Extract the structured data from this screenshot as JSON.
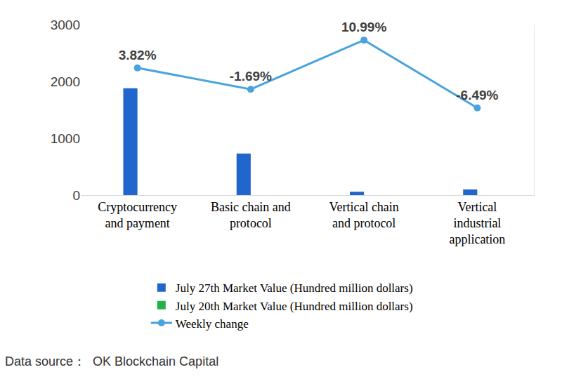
{
  "chart_data": {
    "type": "bar",
    "categories": [
      "Cryptocurrency and payment",
      "Basic chain and protocol",
      "Vertical chain and protocol",
      "Vertical industrial application"
    ],
    "series": [
      {
        "name": "July 27th Market Value (Hundred million dollars)",
        "type": "bar",
        "color": "#2166cc",
        "values": [
          1880,
          730,
          60,
          100
        ]
      },
      {
        "name": "July 20th Market Value (Hundred million dollars)",
        "type": "bar",
        "color": "#22b14c",
        "values": [
          null,
          null,
          null,
          null
        ]
      },
      {
        "name": "Weekly change",
        "type": "line",
        "color": "#4aa3df",
        "marker": "circle",
        "axis": "y2",
        "data_labels": true,
        "values": [
          3.82,
          -1.69,
          10.99,
          -6.49
        ],
        "value_labels": [
          "3.82%",
          "-1.69%",
          "10.99%",
          "-6.49%"
        ]
      }
    ],
    "ylim": [
      0,
      3000
    ],
    "yticks": [
      0,
      1000,
      2000,
      3000
    ],
    "y2lim": [
      -29,
      15
    ],
    "y2ticks": [],
    "grid": false,
    "legend": "bottom",
    "annotations": [
      "Data source：  OK Blockchain Capital"
    ]
  }
}
